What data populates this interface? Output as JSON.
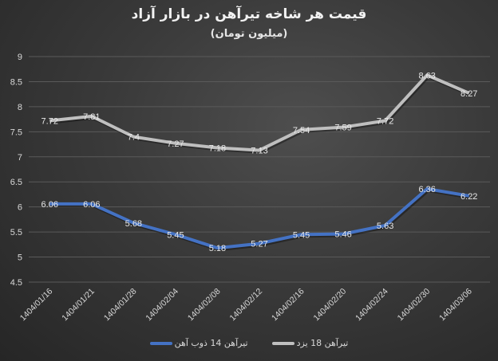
{
  "title": "قیمت هر شاخه تیرآهن در بازار آزاد",
  "subtitle": "(میلیون تومان)",
  "colors": {
    "series1": "#4472C4",
    "series2": "#BFBFBF",
    "grid": "#5a5a5a",
    "text": "#d9d9d9"
  },
  "chart_data": {
    "type": "line",
    "title": "قیمت هر شاخه تیرآهن در بازار آزاد",
    "subtitle": "(میلیون تومان)",
    "xlabel": "",
    "ylabel": "",
    "ylim": [
      4.5,
      9
    ],
    "yticks": [
      4.5,
      5,
      5.5,
      6,
      6.5,
      7,
      7.5,
      8,
      8.5,
      9
    ],
    "grid": true,
    "legend_position": "bottom",
    "categories": [
      "1404/01/16",
      "1404/01/21",
      "1404/01/28",
      "1404/02/04",
      "1404/02/08",
      "1404/02/12",
      "1404/02/16",
      "1404/02/20",
      "1404/02/24",
      "1404/02/30",
      "1404/03/06"
    ],
    "series": [
      {
        "name": "تیرآهن 14 ذوب آهن",
        "color": "#4472C4",
        "values": [
          6.06,
          6.06,
          5.68,
          5.45,
          5.18,
          5.27,
          5.45,
          5.46,
          5.63,
          6.36,
          6.22
        ]
      },
      {
        "name": "تیرآهن 18 یزد",
        "color": "#BFBFBF",
        "values": [
          7.72,
          7.81,
          7.4,
          7.27,
          7.18,
          7.13,
          7.54,
          7.59,
          7.72,
          8.63,
          8.27
        ]
      }
    ]
  }
}
